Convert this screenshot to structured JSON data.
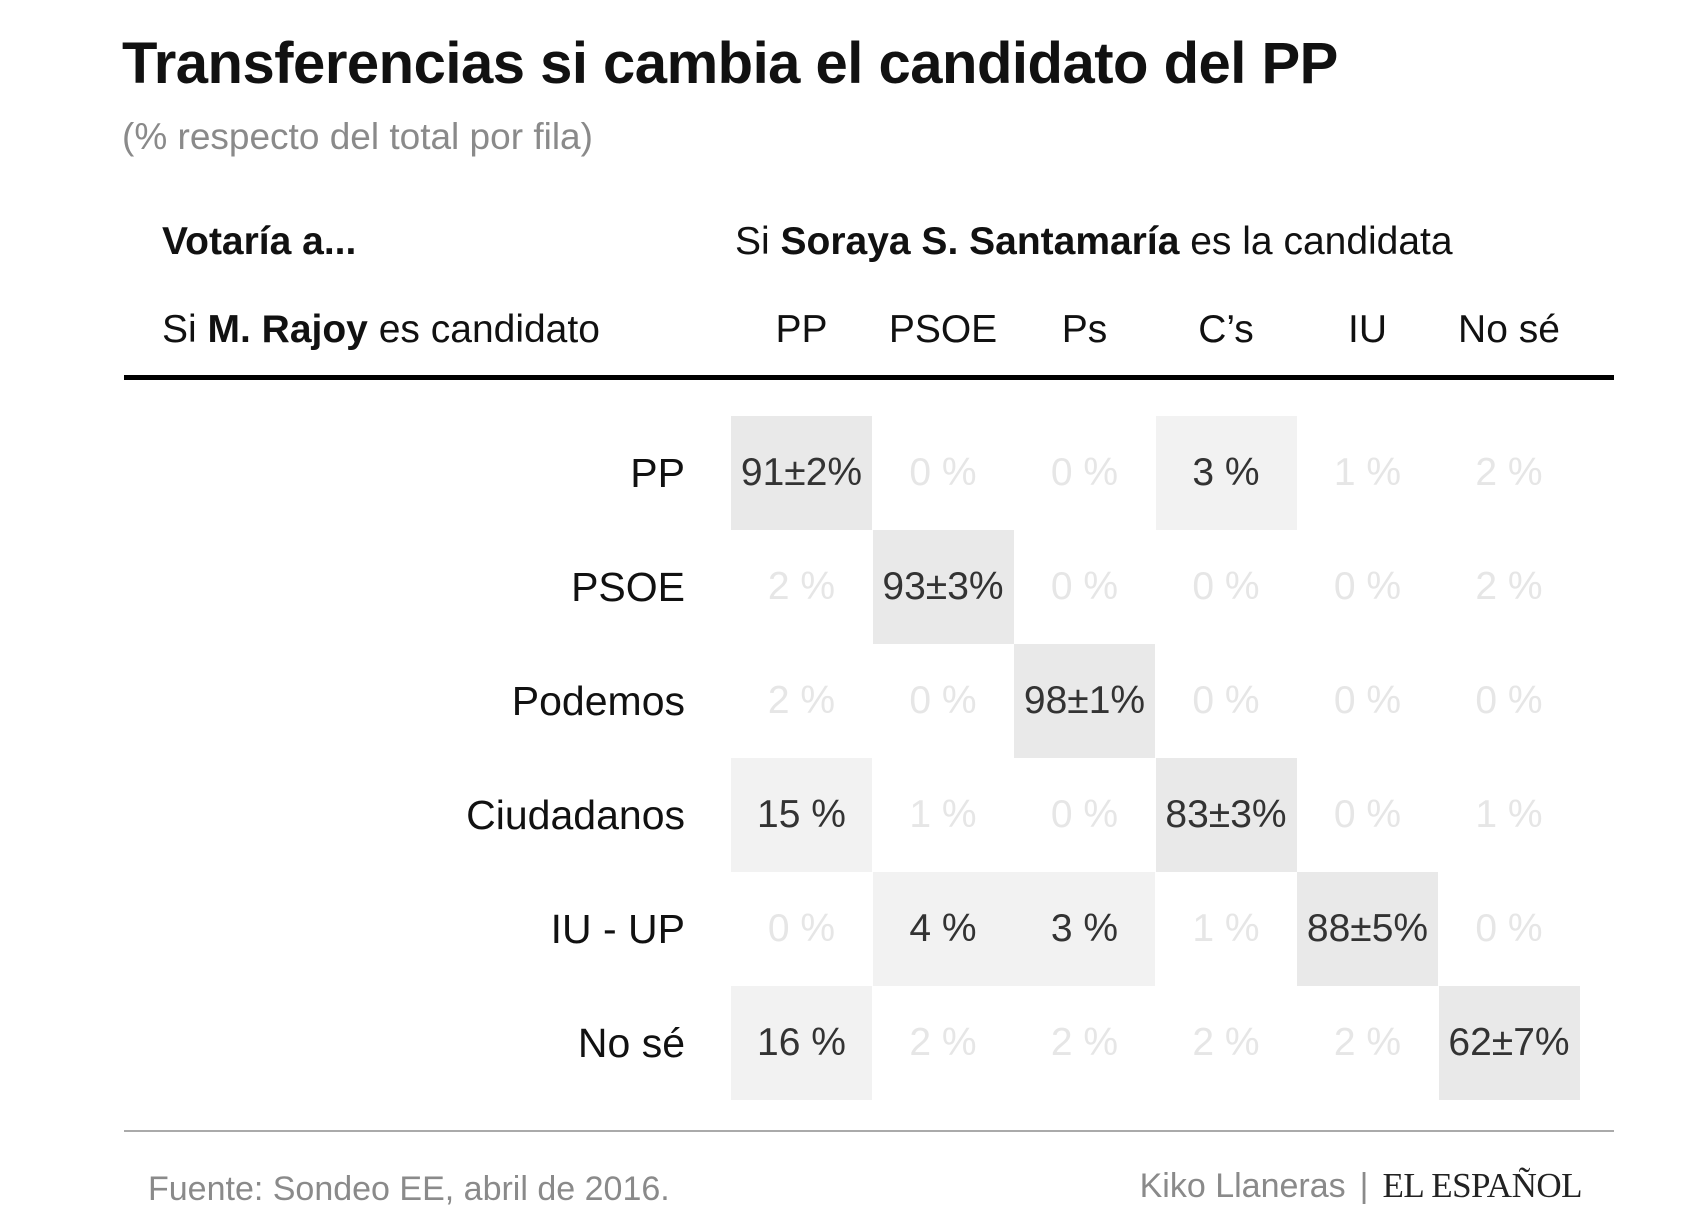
{
  "title": "Transferencias si cambia el candidato del PP",
  "subtitle": "(% respecto del total por fila)",
  "header": {
    "row_axis_title": "Votaría a...",
    "col_group": {
      "pre": "Si ",
      "bold": "Soraya S. Santamaría",
      "post": " es la candidata"
    },
    "row_group": {
      "pre": "Si ",
      "bold": "M. Rajoy",
      "post": " es candidato"
    }
  },
  "chart_data": {
    "type": "heatmap",
    "title": "Transferencias si cambia el candidato del PP",
    "subtitle": "(% respecto del total por fila)",
    "columns": [
      "PP",
      "PSOE",
      "Ps",
      "C’s",
      "IU",
      "No sé"
    ],
    "rows": [
      "PP",
      "PSOE",
      "Podemos",
      "Ciudadanos",
      "IU - UP",
      "No sé"
    ],
    "values": [
      [
        91,
        0,
        0,
        3,
        1,
        2
      ],
      [
        2,
        93,
        0,
        0,
        0,
        2
      ],
      [
        2,
        0,
        98,
        0,
        0,
        0
      ],
      [
        15,
        1,
        0,
        83,
        0,
        1
      ],
      [
        0,
        4,
        3,
        1,
        88,
        0
      ],
      [
        16,
        2,
        2,
        2,
        2,
        62
      ]
    ],
    "labels": [
      [
        "91±2%",
        "0 %",
        "0 %",
        "3 %",
        "1 %",
        "2 %"
      ],
      [
        "2 %",
        "93±3%",
        "0 %",
        "0 %",
        "0 %",
        "2 %"
      ],
      [
        "2 %",
        "0 %",
        "98±1%",
        "0 %",
        "0 %",
        "0 %"
      ],
      [
        "15 %",
        "1 %",
        "0 %",
        "83±3%",
        "0 %",
        "1 %"
      ],
      [
        "0 %",
        "4 %",
        "3 %",
        "1 %",
        "88±5%",
        "0 %"
      ],
      [
        "16 %",
        "2 %",
        "2 %",
        "2 %",
        "2 %",
        "62±7%"
      ]
    ],
    "colors": {
      "strong_bg": "#e9e9e9",
      "medium_bg": "#f2f2f2",
      "strong_text": "#333333",
      "faint_text": "#e6e6e6"
    }
  },
  "footer": {
    "source": "Fuente: Sondeo EE, abril de 2016.",
    "author": "Kiko Llaneras",
    "separator": "|",
    "brand": "EL ESPAÑOL"
  }
}
